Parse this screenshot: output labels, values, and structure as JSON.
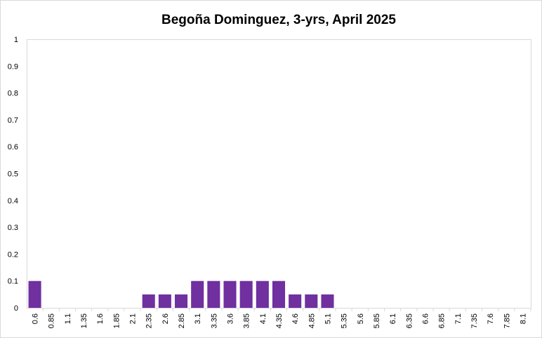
{
  "chart_data": {
    "type": "bar",
    "title": "Begoña Dominguez, 3-yrs, April 2025",
    "xlabel": "",
    "ylabel": "",
    "ylim": [
      0,
      1
    ],
    "yticks": [
      "0",
      "0.1",
      "0.2",
      "0.3",
      "0.4",
      "0.5",
      "0.6",
      "0.7",
      "0.8",
      "0.9",
      "1"
    ],
    "categories": [
      "0.6",
      "0.85",
      "1.1",
      "1.35",
      "1.6",
      "1.85",
      "2.1",
      "2.35",
      "2.6",
      "2.85",
      "3.1",
      "3.35",
      "3.6",
      "3.85",
      "4.1",
      "4.35",
      "4.6",
      "4.85",
      "5.1",
      "5.35",
      "5.6",
      "5.85",
      "6.1",
      "6.35",
      "6.6",
      "6.85",
      "7.1",
      "7.35",
      "7.6",
      "7.85",
      "8.1"
    ],
    "values": [
      0.1,
      0,
      0,
      0,
      0,
      0,
      0,
      0.05,
      0.05,
      0.05,
      0.1,
      0.1,
      0.1,
      0.1,
      0.1,
      0.1,
      0.05,
      0.05,
      0.05,
      0,
      0,
      0,
      0,
      0,
      0,
      0,
      0,
      0,
      0,
      0,
      0
    ],
    "grid": false,
    "legend": "none",
    "bar_color": "#7030a0"
  }
}
